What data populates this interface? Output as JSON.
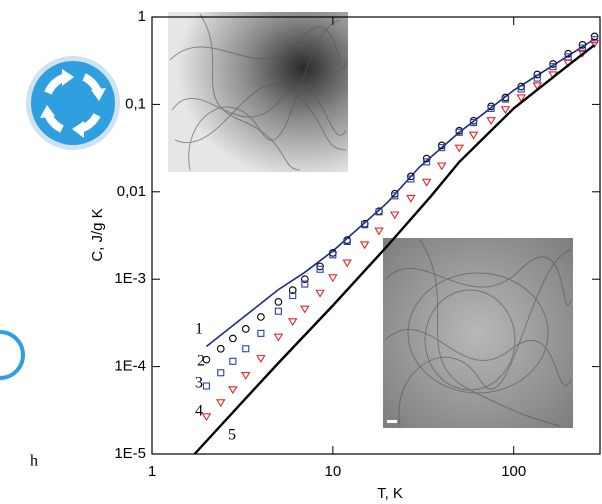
{
  "side_text": "h",
  "chart_data": {
    "type": "scatter",
    "xlabel": "T, K",
    "ylabel": "C, J/g K",
    "log_x": true,
    "log_y": true,
    "xlim": [
      1,
      300
    ],
    "ylim": [
      1e-05,
      1
    ],
    "xticks": [
      1,
      10,
      100
    ],
    "yticks": [
      {
        "value": 1e-05,
        "label": "1E-5"
      },
      {
        "value": 0.0001,
        "label": "1E-4"
      },
      {
        "value": 0.001,
        "label": "1E-3"
      },
      {
        "value": 0.01,
        "label": "0,01"
      },
      {
        "value": 0.1,
        "label": "0,1"
      },
      1
    ],
    "series": [
      {
        "name": "1",
        "style": "line",
        "color": "#1f2a80",
        "x": [
          2,
          3,
          5,
          7,
          10,
          20,
          30,
          50,
          100,
          200,
          280
        ],
        "values": [
          0.00017,
          0.00033,
          0.00076,
          0.0012,
          0.0021,
          0.0075,
          0.019,
          0.048,
          0.145,
          0.36,
          0.56
        ]
      },
      {
        "name": "2",
        "style": "circle",
        "color": "#000000",
        "x": [
          2,
          2.4,
          2.8,
          3.3,
          4,
          5,
          6,
          7,
          8.5,
          10,
          12,
          15,
          18,
          22,
          27,
          33,
          40,
          50,
          60,
          75,
          90,
          110,
          135,
          165,
          200,
          240,
          280
        ],
        "values": [
          0.00012,
          0.00016,
          0.00021,
          0.00027,
          0.00037,
          0.00055,
          0.00075,
          0.001,
          0.0014,
          0.002,
          0.0028,
          0.0043,
          0.006,
          0.0095,
          0.015,
          0.024,
          0.034,
          0.05,
          0.065,
          0.095,
          0.12,
          0.16,
          0.22,
          0.29,
          0.38,
          0.48,
          0.6
        ]
      },
      {
        "name": "3",
        "style": "square",
        "color": "#2d3fa8",
        "x": [
          2,
          2.4,
          2.8,
          3.3,
          4,
          5,
          6,
          7,
          8.5,
          10,
          12,
          15,
          18,
          22,
          27,
          33,
          40,
          50,
          60,
          75,
          90,
          110,
          135,
          165,
          200,
          240,
          280
        ],
        "values": [
          6e-05,
          8.5e-05,
          0.000115,
          0.00016,
          0.00024,
          0.00043,
          0.00065,
          0.00088,
          0.0013,
          0.0019,
          0.0027,
          0.0042,
          0.0059,
          0.009,
          0.014,
          0.022,
          0.032,
          0.048,
          0.062,
          0.09,
          0.115,
          0.15,
          0.2,
          0.27,
          0.35,
          0.44,
          0.55
        ]
      },
      {
        "name": "4",
        "style": "triangle",
        "color": "#e0262b",
        "x": [
          2,
          2.4,
          2.8,
          3.3,
          4,
          5,
          6,
          7,
          8.5,
          10,
          12,
          15,
          18,
          22,
          27,
          33,
          40,
          50,
          60,
          75,
          90,
          110,
          135,
          165,
          200,
          240,
          280
        ],
        "values": [
          2.7e-05,
          3.9e-05,
          5.5e-05,
          8e-05,
          0.000125,
          0.00022,
          0.00033,
          0.00046,
          0.0007,
          0.00105,
          0.00155,
          0.0025,
          0.0036,
          0.0055,
          0.0085,
          0.013,
          0.02,
          0.032,
          0.045,
          0.066,
          0.088,
          0.12,
          0.165,
          0.22,
          0.3,
          0.39,
          0.5
        ]
      },
      {
        "name": "5",
        "style": "line",
        "color": "#000000",
        "x": [
          1.72,
          3,
          5,
          10,
          20,
          35,
          50,
          100,
          200,
          280
        ],
        "values": [
          1e-05,
          3.5e-05,
          0.00011,
          0.0005,
          0.0024,
          0.009,
          0.022,
          0.09,
          0.28,
          0.48
        ]
      }
    ]
  }
}
